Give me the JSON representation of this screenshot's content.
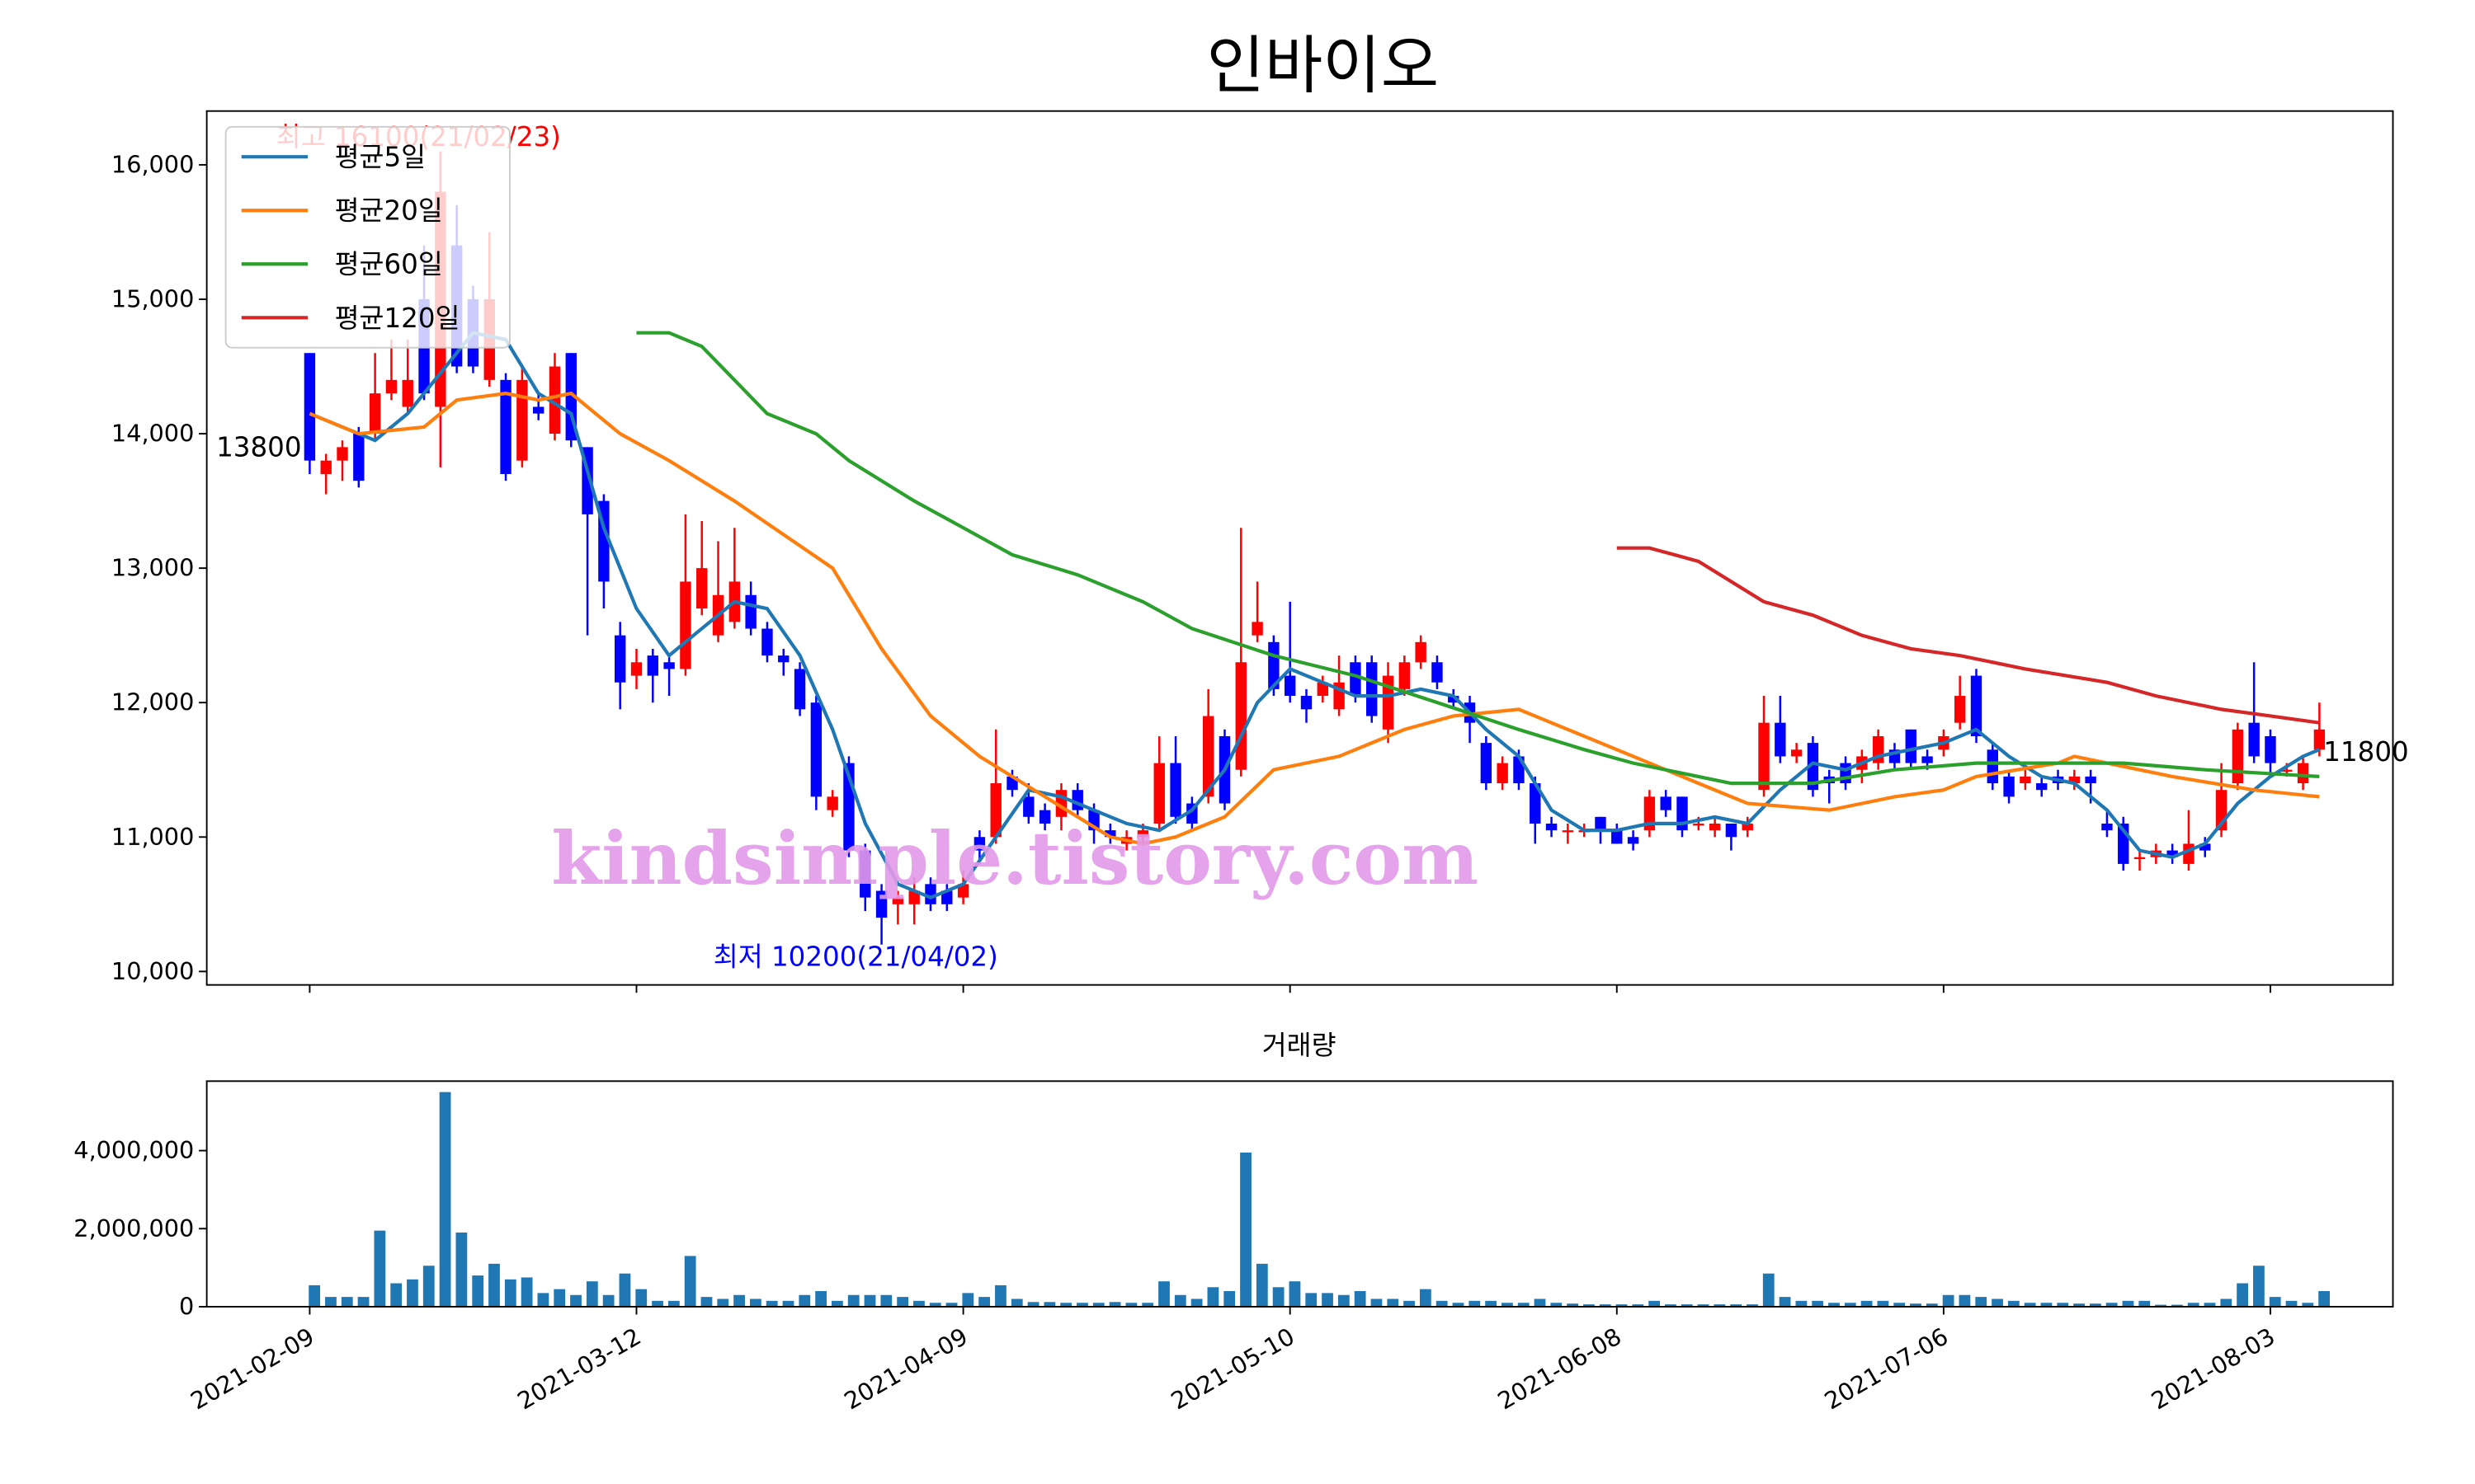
{
  "chart_data": [
    {
      "type": "candlestick",
      "title": "인바이오",
      "x": [
        0,
        1,
        2,
        3,
        4,
        5,
        6,
        7,
        8,
        9,
        10,
        11,
        12,
        13,
        14,
        15,
        16,
        17,
        18,
        19,
        20,
        21,
        22,
        23,
        24,
        25,
        26,
        27,
        28,
        29,
        30,
        31,
        32,
        33,
        34,
        35,
        36,
        37,
        38,
        39,
        40,
        41,
        42,
        43,
        44,
        45,
        46,
        47,
        48,
        49,
        50,
        51,
        52,
        53,
        54,
        55,
        56,
        57,
        58,
        59,
        60,
        61,
        62,
        63,
        64,
        65,
        66,
        67,
        68,
        69,
        70,
        71,
        72,
        73,
        74,
        75,
        76,
        77,
        78,
        79,
        80,
        81,
        82,
        83,
        84,
        85,
        86,
        87,
        88,
        89,
        90,
        91,
        92,
        93,
        94,
        95,
        96,
        97,
        98,
        99,
        100,
        101,
        102,
        103,
        104,
        105,
        106,
        107,
        108,
        109,
        110,
        111,
        112,
        113,
        114,
        115,
        116,
        117,
        118,
        119,
        120,
        121,
        122,
        123
      ],
      "open": [
        14600,
        13700,
        13800,
        14000,
        14000,
        14300,
        14200,
        15000,
        14200,
        15400,
        15000,
        14400,
        14400,
        13800,
        14200,
        14000,
        14600,
        13900,
        13500,
        12500,
        12200,
        12350,
        12300,
        12250,
        12700,
        12500,
        12600,
        12800,
        12550,
        12350,
        12250,
        12000,
        11200,
        11550,
        10900,
        10600,
        10500,
        10500,
        10650,
        10600,
        10550,
        11000,
        11000,
        11450,
        11300,
        11200,
        11150,
        11350,
        11200,
        11050,
        10950,
        11000,
        11100,
        11550,
        11250,
        11300,
        11750,
        11500,
        12500,
        12450,
        12200,
        12050,
        12050,
        11950,
        12300,
        12300,
        11800,
        12100,
        12300,
        12300,
        12050,
        12000,
        11700,
        11400,
        11600,
        11400,
        11100,
        11050,
        11050,
        11150,
        11050,
        11000,
        11050,
        11300,
        11300,
        11100,
        11050,
        11100,
        11050,
        11350,
        11850,
        11600,
        11700,
        11450,
        11550,
        11500,
        11550,
        11650,
        11800,
        11600,
        11650,
        11850,
        12200,
        11650,
        11450,
        11400,
        11400,
        11450,
        11400,
        11450,
        11100,
        11100,
        10850,
        10850,
        10900,
        10800,
        10950,
        11050,
        11400,
        11850,
        11750,
        11500,
        11400,
        11650
      ],
      "high": [
        14600,
        13850,
        13950,
        14050,
        14600,
        14700,
        14700,
        15400,
        16100,
        15700,
        15100,
        15500,
        14450,
        14500,
        14300,
        14600,
        14600,
        13900,
        13550,
        12600,
        12400,
        12400,
        12350,
        13400,
        13350,
        13200,
        13300,
        12900,
        12600,
        12400,
        12300,
        12050,
        11350,
        11600,
        10950,
        10650,
        10600,
        10700,
        10700,
        10650,
        10750,
        11050,
        11800,
        11500,
        11400,
        11250,
        11400,
        11400,
        11250,
        11100,
        11050,
        11100,
        11750,
        11750,
        11300,
        12100,
        11800,
        13300,
        12900,
        12500,
        12750,
        12100,
        12200,
        12350,
        12350,
        12350,
        12300,
        12350,
        12500,
        12350,
        12100,
        12050,
        11750,
        11600,
        11650,
        11450,
        11150,
        11100,
        11100,
        11150,
        11100,
        11050,
        11350,
        11350,
        11300,
        11150,
        11150,
        11100,
        11150,
        12050,
        12050,
        11700,
        11750,
        11500,
        11600,
        11650,
        11800,
        11700,
        11800,
        11650,
        11800,
        12200,
        12250,
        11700,
        11500,
        11500,
        11450,
        11500,
        11500,
        11500,
        11200,
        11150,
        10900,
        10950,
        10950,
        11200,
        11000,
        11550,
        11850,
        12300,
        11800,
        11550,
        11600,
        12000
      ],
      "low": [
        13700,
        13550,
        13650,
        13600,
        13950,
        14250,
        14150,
        14250,
        13750,
        14450,
        14450,
        14350,
        13650,
        13750,
        14100,
        13950,
        13900,
        12500,
        12700,
        11950,
        12100,
        12000,
        12050,
        12200,
        12650,
        12450,
        12550,
        12500,
        12300,
        12200,
        11900,
        11200,
        11150,
        10850,
        10450,
        10200,
        10350,
        10350,
        10450,
        10450,
        10500,
        10800,
        10950,
        11300,
        11100,
        11050,
        11050,
        11150,
        10950,
        10950,
        10900,
        10950,
        11050,
        11100,
        11050,
        11250,
        11200,
        11450,
        12450,
        12050,
        12000,
        11850,
        12000,
        11900,
        12000,
        11850,
        11700,
        12050,
        12250,
        12100,
        11950,
        11700,
        11350,
        11350,
        11350,
        10950,
        11000,
        10950,
        11000,
        10950,
        10950,
        10900,
        11000,
        11150,
        11000,
        11050,
        11000,
        10900,
        11000,
        11300,
        11550,
        11550,
        11300,
        11250,
        11350,
        11400,
        11500,
        11500,
        11500,
        11500,
        11600,
        11800,
        11700,
        11350,
        11250,
        11350,
        11300,
        11350,
        11350,
        11250,
        11000,
        10750,
        10750,
        10800,
        10800,
        10750,
        10850,
        11000,
        11350,
        11550,
        11450,
        11450,
        11350,
        11600
      ],
      "close": [
        13800,
        13800,
        13900,
        13650,
        14300,
        14400,
        14400,
        14300,
        15800,
        14500,
        14500,
        15000,
        13700,
        14400,
        14150,
        14500,
        13950,
        13400,
        12900,
        12150,
        12300,
        12200,
        12250,
        12900,
        13000,
        12800,
        12900,
        12550,
        12350,
        12300,
        11950,
        11300,
        11300,
        10900,
        10550,
        10400,
        10550,
        10600,
        10500,
        10500,
        10650,
        10900,
        11400,
        11350,
        11150,
        11100,
        11350,
        11200,
        11050,
        11000,
        11000,
        11050,
        11550,
        11150,
        11100,
        11900,
        11250,
        12300,
        12600,
        12100,
        12050,
        11950,
        12150,
        12150,
        12050,
        11900,
        12200,
        12300,
        12450,
        12150,
        12000,
        11850,
        11400,
        11550,
        11400,
        11100,
        11050,
        11050,
        11050,
        11050,
        10950,
        10950,
        11300,
        11200,
        11050,
        11100,
        11100,
        11000,
        11100,
        11850,
        11600,
        11650,
        11350,
        11400,
        11400,
        11600,
        11750,
        11550,
        11550,
        11550,
        11750,
        12050,
        11750,
        11400,
        11300,
        11450,
        11350,
        11400,
        11450,
        11400,
        11050,
        10800,
        10850,
        10900,
        10850,
        10950,
        10900,
        11350,
        11800,
        11600,
        11550,
        11500,
        11550,
        11800
      ],
      "up_color": "red",
      "down_color": "blue",
      "series": [
        {
          "name": "평균5일",
          "color": "#1f77b4",
          "x": [
            0,
            2,
            4,
            6,
            8,
            10,
            12,
            14,
            16,
            18,
            20,
            22,
            24,
            26,
            28,
            30,
            32,
            34,
            36,
            38,
            40,
            42,
            44,
            46,
            48,
            50,
            52,
            54,
            56,
            58,
            60,
            62,
            64,
            66,
            68,
            70,
            72,
            74,
            76,
            78,
            80,
            82,
            84,
            86,
            88,
            90,
            92,
            94,
            96,
            98,
            100,
            102,
            104,
            106,
            108,
            110,
            112,
            114,
            116,
            118,
            120,
            122,
            123
          ],
          "values": [
            14150,
            14050,
            13950,
            14150,
            14450,
            14750,
            14700,
            14300,
            14150,
            13300,
            12700,
            12350,
            12550,
            12750,
            12700,
            12350,
            11800,
            11100,
            10650,
            10550,
            10650,
            11000,
            11350,
            11300,
            11200,
            11100,
            11050,
            11200,
            11500,
            12000,
            12250,
            12150,
            12050,
            12050,
            12100,
            12050,
            11800,
            11600,
            11200,
            11050,
            11050,
            11100,
            11100,
            11150,
            11100,
            11350,
            11550,
            11500,
            11600,
            11650,
            11700,
            11800,
            11600,
            11450,
            11400,
            11200,
            10900,
            10850,
            10950,
            11250,
            11450,
            11600,
            11650
          ]
        },
        {
          "name": "평균20일",
          "color": "#ff7f0e",
          "x": [
            0,
            3,
            7,
            9,
            12,
            14,
            16,
            19,
            22,
            26,
            32,
            35,
            38,
            41,
            45,
            49,
            51,
            53,
            56,
            59,
            63,
            67,
            70,
            74,
            78,
            81,
            85,
            88,
            93,
            97,
            100,
            102,
            107,
            108,
            114,
            119,
            123
          ],
          "values": [
            14150,
            14000,
            14050,
            14250,
            14300,
            14250,
            14300,
            14000,
            13800,
            13500,
            13000,
            12400,
            11900,
            11600,
            11300,
            11000,
            10950,
            11000,
            11150,
            11500,
            11600,
            11800,
            11900,
            11950,
            11750,
            11600,
            11400,
            11250,
            11200,
            11300,
            11350,
            11450,
            11550,
            11600,
            11450,
            11350,
            11300
          ]
        },
        {
          "name": "평균60일",
          "color": "#2ca02c",
          "x": [
            20,
            22,
            24,
            26,
            28,
            31,
            33,
            37,
            40,
            43,
            47,
            51,
            54,
            59,
            64,
            69,
            74,
            78,
            81,
            87,
            92,
            97,
            102,
            107,
            111,
            116,
            123
          ],
          "values": [
            14750,
            14750,
            14650,
            14400,
            14150,
            14000,
            13800,
            13500,
            13300,
            13100,
            12950,
            12750,
            12550,
            12350,
            12200,
            12000,
            11800,
            11650,
            11550,
            11400,
            11400,
            11500,
            11550,
            11550,
            11550,
            11500,
            11450
          ]
        },
        {
          "name": "평균120일",
          "color": "#d62728",
          "x": [
            80,
            82,
            85,
            87,
            89,
            92,
            95,
            98,
            101,
            105,
            110,
            113,
            117,
            120,
            123
          ],
          "values": [
            13150,
            13150,
            13050,
            12900,
            12750,
            12650,
            12500,
            12400,
            12350,
            12250,
            12150,
            12050,
            11950,
            11900,
            11850
          ]
        }
      ],
      "annotations": [
        "최고 16100(21/02/23)",
        "최저 10200(21/04/02)",
        "13800",
        "11800"
      ],
      "watermark": "kindsimple.tistory.com",
      "xlim": [
        -6.3,
        127.5
      ],
      "xticks": [
        {
          "value": 0,
          "label": "2021-02-09"
        },
        {
          "value": 20,
          "label": "2021-03-12"
        },
        {
          "value": 40,
          "label": "2021-04-09"
        },
        {
          "value": 60,
          "label": "2021-05-10"
        },
        {
          "value": 80,
          "label": "2021-06-08"
        },
        {
          "value": 100,
          "label": "2021-07-06"
        },
        {
          "value": 120,
          "label": "2021-08-03"
        }
      ],
      "ylim": [
        9900,
        16400
      ],
      "yticks": [
        {
          "value": 10000,
          "label": "10,000"
        },
        {
          "value": 11000,
          "label": "11,000"
        },
        {
          "value": 12000,
          "label": "12,000"
        },
        {
          "value": 13000,
          "label": "13,000"
        },
        {
          "value": 14000,
          "label": "14,000"
        },
        {
          "value": 15000,
          "label": "15,000"
        },
        {
          "value": 16000,
          "label": "16,000"
        }
      ],
      "legend": "upper left"
    },
    {
      "type": "bar",
      "title": "거래량",
      "color": "#1f77b4",
      "values": [
        550000,
        250000,
        250000,
        250000,
        1950000,
        600000,
        700000,
        1050000,
        5500000,
        1900000,
        800000,
        1100000,
        700000,
        750000,
        350000,
        450000,
        300000,
        650000,
        300000,
        850000,
        450000,
        150000,
        150000,
        1300000,
        250000,
        200000,
        300000,
        200000,
        150000,
        150000,
        300000,
        400000,
        150000,
        300000,
        300000,
        300000,
        250000,
        150000,
        100000,
        100000,
        350000,
        250000,
        550000,
        200000,
        120000,
        120000,
        100000,
        100000,
        100000,
        120000,
        100000,
        100000,
        650000,
        300000,
        200000,
        500000,
        400000,
        3950000,
        1100000,
        500000,
        650000,
        350000,
        350000,
        300000,
        400000,
        200000,
        200000,
        150000,
        450000,
        150000,
        100000,
        150000,
        150000,
        100000,
        100000,
        200000,
        100000,
        80000,
        60000,
        60000,
        60000,
        60000,
        150000,
        60000,
        60000,
        60000,
        60000,
        60000,
        60000,
        850000,
        250000,
        150000,
        150000,
        100000,
        100000,
        150000,
        150000,
        100000,
        80000,
        80000,
        300000,
        300000,
        250000,
        200000,
        150000,
        100000,
        100000,
        100000,
        80000,
        80000,
        100000,
        150000,
        150000,
        50000,
        50000,
        100000,
        100000,
        200000,
        600000,
        1050000,
        250000,
        150000,
        100000,
        400000
      ],
      "xlim": [
        -6.3,
        127.5
      ],
      "xticks": [
        {
          "value": 0,
          "label": "2021-02-09"
        },
        {
          "value": 20,
          "label": "2021-03-12"
        },
        {
          "value": 40,
          "label": "2021-04-09"
        },
        {
          "value": 60,
          "label": "2021-05-10"
        },
        {
          "value": 80,
          "label": "2021-06-08"
        },
        {
          "value": 100,
          "label": "2021-07-06"
        },
        {
          "value": 120,
          "label": "2021-08-03"
        }
      ],
      "ylim": [
        0,
        5780000
      ],
      "yticks": [
        0,
        {
          "value": 2000000,
          "label": "2,000,000"
        },
        {
          "value": 4000000,
          "label": "4,000,000"
        }
      ]
    }
  ]
}
